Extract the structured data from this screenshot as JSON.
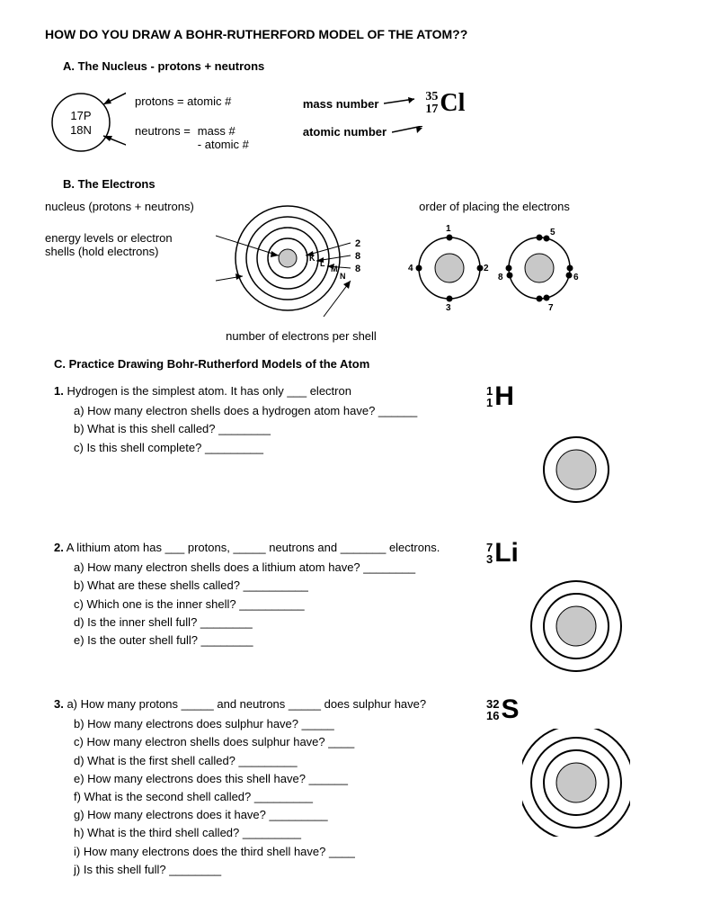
{
  "title": "HOW DO YOU DRAW A BOHR-RUTHERFORD MODEL OF THE ATOM??",
  "sectionA": {
    "heading": "A.  The Nucleus   -   protons + neutrons",
    "nucleus": {
      "p": "17P",
      "n": "18N"
    },
    "protons_label": "protons = atomic #",
    "neutrons_label": "neutrons =",
    "neutrons_val1": "mass #",
    "neutrons_val2": "- atomic #",
    "mass_number_label": "mass number",
    "atomic_number_label": "atomic number",
    "element": {
      "mass": "35",
      "atomic": "17",
      "symbol": "Cl",
      "symbol_fontsize": 28,
      "num_fontsize": 14
    }
  },
  "sectionB": {
    "heading": "B.  The Electrons",
    "label_nucleus": "nucleus (protons + neutrons)",
    "label_shells": "energy levels or electron shells (hold electrons)",
    "shell_letters": [
      "K",
      "L",
      "M",
      "N"
    ],
    "shell_counts": [
      "2",
      "8",
      "8"
    ],
    "caption": "number of electrons per shell",
    "order_label": "order of placing the electrons",
    "order1": [
      "1",
      "2",
      "3",
      "4"
    ],
    "order2": [
      "5",
      "6",
      "7",
      "8"
    ]
  },
  "sectionC": {
    "heading": "C. Practice Drawing Bohr-Rutherford Models of the Atom",
    "items": [
      {
        "num": "1.",
        "lead": "Hydrogen is the simplest atom. It has only  ___ electron",
        "subs": [
          "a) How many electron shells does a hydrogen atom have? ______",
          "b) What is this shell called? ________",
          "c) Is this shell complete?    _________"
        ],
        "element": {
          "mass": "1",
          "atomic": "1",
          "symbol": "H"
        },
        "shells": 1
      },
      {
        "num": "2.",
        "lead": "A lithium atom has ___ protons, _____ neutrons and _______ electrons.",
        "subs": [
          "a) How many electron shells does a lithium atom have? ________",
          "b) What are these shells called? __________",
          "c) Which one is the inner shell?  __________",
          "d) Is the inner shell full?  ________",
          "e) Is the outer shell full? ________"
        ],
        "element": {
          "mass": "7",
          "atomic": "3",
          "symbol": "Li"
        },
        "shells": 2
      },
      {
        "num": "3.",
        "lead": "a) How many protons _____ and neutrons _____ does sulphur have?",
        "subs": [
          "b) How many electrons does sulphur have? _____",
          "c) How many electron shells does sulphur have? ____",
          "d) What is the first shell called?            _________",
          "e) How many electrons does this shell have? ______",
          "f) What is the second shell called?       _________",
          "g) How many electrons does it have?    _________",
          "h) What is the third shell called?           _________",
          "i) How many electrons does the third shell have? ____",
          "j) Is this shell full? ________"
        ],
        "element": {
          "mass": "32",
          "atomic": "16",
          "symbol": "S"
        },
        "shells": 3
      }
    ]
  },
  "colors": {
    "text": "#000000",
    "bg": "#ffffff",
    "nucleus_fill": "#c8c8c8",
    "stroke": "#000000"
  }
}
